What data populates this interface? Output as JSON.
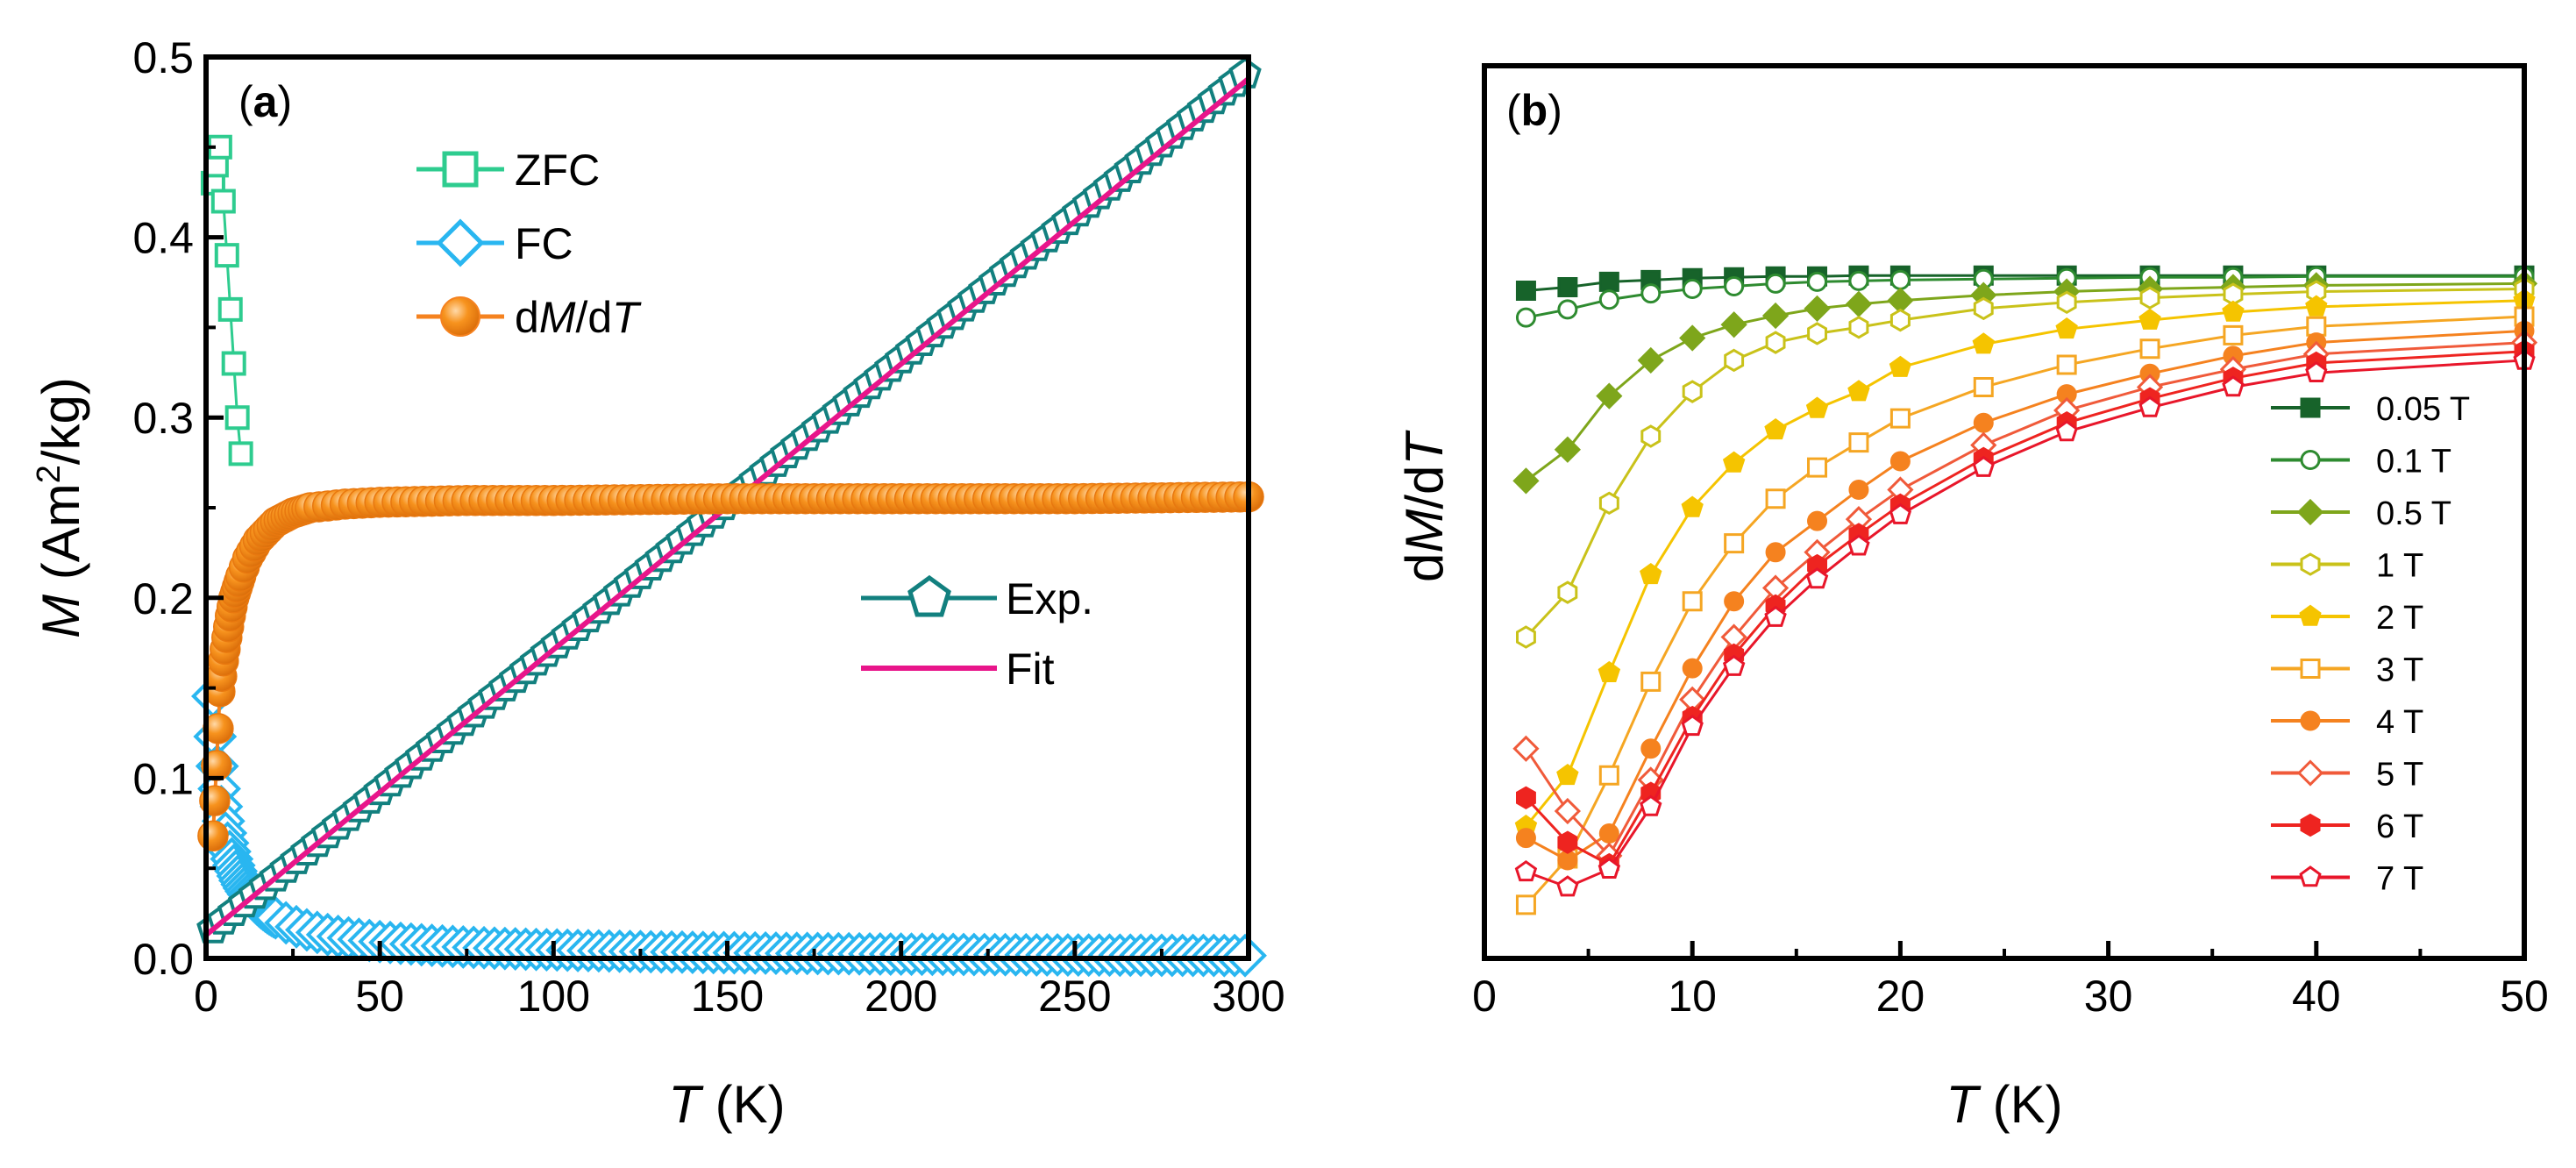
{
  "chart_data": [
    {
      "panel": "(a)",
      "panel_letter": "a",
      "type": "scatter",
      "xlabel": "T",
      "xunit": "(K)",
      "ylabel": "M",
      "yunit_pre": "(Am",
      "yunit_sup": "2",
      "yunit_post": "/kg)",
      "xlim": [
        0,
        300
      ],
      "ylim": [
        0,
        0.5
      ],
      "xticks": [
        "0",
        "50",
        "100",
        "150",
        "200",
        "250",
        "300"
      ],
      "yticks": [
        "0.0",
        "0.1",
        "0.2",
        "0.3",
        "0.4",
        "0.5"
      ],
      "legend_top": [
        {
          "name": "ZFC",
          "marker": "square",
          "color": "#2ecc8f"
        },
        {
          "name": "FC",
          "marker": "diamond",
          "color": "#29b6f0"
        },
        {
          "name_pre": "d",
          "name_it1": "M",
          "name_mid": "/d",
          "name_it2": "T",
          "marker": "sphere",
          "color": "#f5821f"
        }
      ],
      "legend_bottom": [
        {
          "name": "Exp.",
          "marker": "pentagon",
          "color": "#12807f"
        },
        {
          "name": "Fit",
          "marker": "line",
          "color": "#e8158a"
        }
      ],
      "series": [
        {
          "name": "ZFC",
          "x": [
            2,
            3,
            4,
            5,
            6,
            7,
            8,
            9,
            10
          ],
          "y": [
            0.43,
            0.44,
            0.45,
            0.42,
            0.39,
            0.36,
            0.33,
            0.3,
            0.28
          ]
        },
        {
          "name": "FC",
          "curve": "Curie",
          "C": 0.48,
          "theta": -1.3,
          "offset": 0.0,
          "xrange": [
            2,
            300
          ],
          "step": 3
        },
        {
          "name": "dM/dT",
          "x": [
            2,
            3,
            4,
            5,
            6,
            7,
            8,
            10,
            12,
            15,
            20,
            25,
            30,
            40,
            50,
            75,
            100,
            150,
            200,
            250,
            300
          ],
          "y": [
            0.068,
            0.107,
            0.148,
            0.165,
            0.178,
            0.19,
            0.2,
            0.212,
            0.222,
            0.232,
            0.242,
            0.247,
            0.25,
            0.252,
            0.253,
            0.254,
            0.254,
            0.255,
            0.255,
            0.255,
            0.256
          ]
        },
        {
          "name": "Exp.",
          "curve": "linear",
          "y0": 0.013,
          "y1": 0.492,
          "xrange": [
            2,
            300
          ],
          "step": 3
        },
        {
          "name": "Fit",
          "curve": "linear",
          "y0": 0.013,
          "y1": 0.488
        }
      ]
    },
    {
      "panel": "(b)",
      "panel_letter": "b",
      "type": "line",
      "xlabel": "T",
      "xunit": "(K)",
      "ylabel_pre": "d",
      "ylabel_it1": "M",
      "ylabel_mid": "/d",
      "ylabel_it2": "T",
      "xlim": [
        0,
        50
      ],
      "ylim": [
        0,
        1
      ],
      "xticks": [
        "0",
        "10",
        "20",
        "30",
        "40",
        "50"
      ],
      "x": [
        2,
        4,
        6,
        8,
        10,
        12,
        14,
        16,
        18,
        20,
        24,
        28,
        32,
        36,
        40,
        50
      ],
      "series": [
        {
          "name": "0.05 T",
          "color": "#17632a",
          "marker": "square",
          "filled": true,
          "values": [
            0.748,
            0.752,
            0.758,
            0.76,
            0.762,
            0.763,
            0.764,
            0.764,
            0.765,
            0.765,
            0.765,
            0.765,
            0.765,
            0.765,
            0.765,
            0.765
          ]
        },
        {
          "name": "0.1 T",
          "color": "#2e8b30",
          "marker": "circle",
          "filled": false,
          "values": [
            0.718,
            0.727,
            0.738,
            0.745,
            0.75,
            0.753,
            0.756,
            0.758,
            0.759,
            0.76,
            0.761,
            0.762,
            0.763,
            0.763,
            0.764,
            0.764
          ]
        },
        {
          "name": "0.5 T",
          "color": "#7ea61b",
          "marker": "diamond",
          "filled": true,
          "values": [
            0.535,
            0.57,
            0.63,
            0.67,
            0.695,
            0.71,
            0.72,
            0.728,
            0.733,
            0.737,
            0.743,
            0.747,
            0.75,
            0.752,
            0.754,
            0.756
          ]
        },
        {
          "name": "1 T",
          "color": "#c9c21a",
          "marker": "hexagon",
          "filled": false,
          "values": [
            0.36,
            0.41,
            0.51,
            0.585,
            0.635,
            0.67,
            0.69,
            0.7,
            0.707,
            0.715,
            0.728,
            0.735,
            0.74,
            0.744,
            0.747,
            0.75
          ]
        },
        {
          "name": "2 T",
          "color": "#f5c400",
          "marker": "pentagon",
          "filled": true,
          "values": [
            0.148,
            0.205,
            0.32,
            0.43,
            0.505,
            0.555,
            0.592,
            0.616,
            0.635,
            0.662,
            0.688,
            0.705,
            0.715,
            0.724,
            0.73,
            0.737
          ]
        },
        {
          "name": "3 T",
          "color": "#f5a623",
          "marker": "square",
          "filled": false,
          "values": [
            0.06,
            0.112,
            0.205,
            0.31,
            0.4,
            0.465,
            0.515,
            0.55,
            0.578,
            0.605,
            0.64,
            0.665,
            0.683,
            0.698,
            0.708,
            0.719
          ]
        },
        {
          "name": "4 T",
          "color": "#f5821f",
          "marker": "circle",
          "filled": true,
          "values": [
            0.135,
            0.11,
            0.14,
            0.235,
            0.325,
            0.4,
            0.455,
            0.49,
            0.525,
            0.557,
            0.6,
            0.632,
            0.655,
            0.675,
            0.69,
            0.703
          ]
        },
        {
          "name": "5 T",
          "color": "#f05a3a",
          "marker": "diamond",
          "filled": false,
          "values": [
            0.235,
            0.165,
            0.115,
            0.2,
            0.29,
            0.36,
            0.415,
            0.455,
            0.492,
            0.525,
            0.575,
            0.614,
            0.64,
            0.66,
            0.677,
            0.69
          ]
        },
        {
          "name": "6 T",
          "color": "#ee2420",
          "marker": "hexagon",
          "filled": true,
          "values": [
            0.18,
            0.13,
            0.105,
            0.185,
            0.27,
            0.34,
            0.395,
            0.44,
            0.475,
            0.508,
            0.56,
            0.6,
            0.627,
            0.65,
            0.667,
            0.68
          ]
        },
        {
          "name": "7 T",
          "color": "#e8162a",
          "marker": "pentagon",
          "filled": false,
          "values": [
            0.097,
            0.08,
            0.1,
            0.17,
            0.26,
            0.327,
            0.382,
            0.425,
            0.462,
            0.497,
            0.55,
            0.59,
            0.617,
            0.64,
            0.656,
            0.67
          ]
        }
      ]
    }
  ]
}
